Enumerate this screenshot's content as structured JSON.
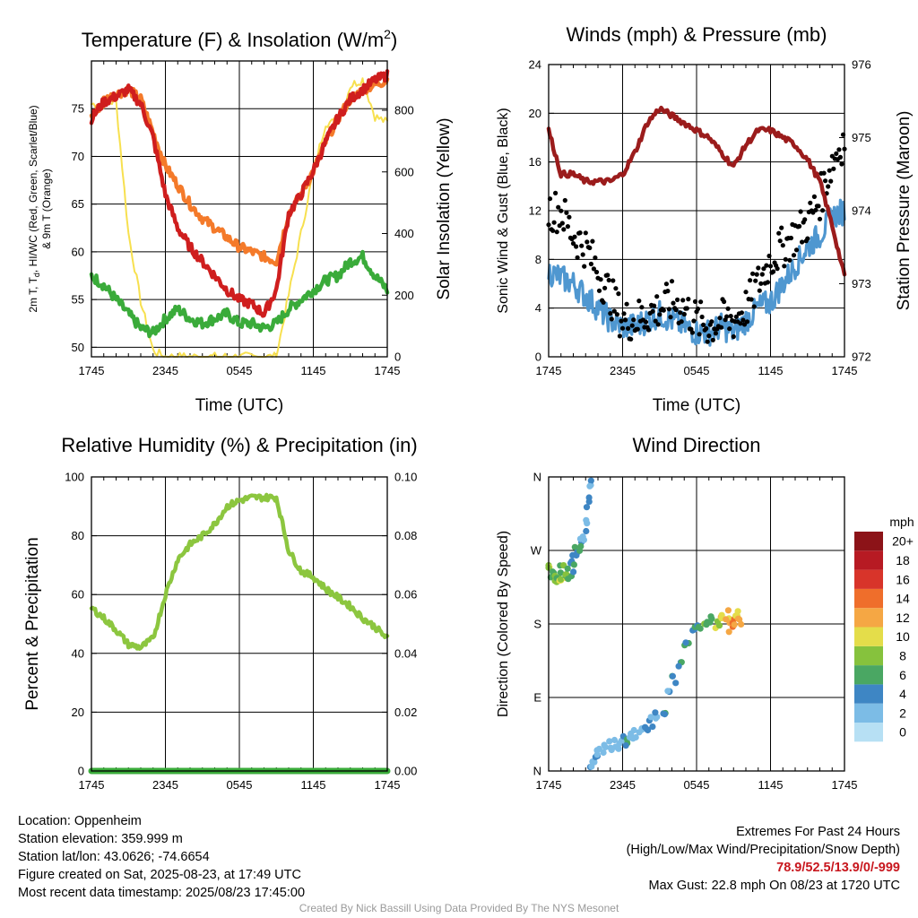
{
  "colors": {
    "temp": "#cf1e1e",
    "dew": "#3aab3a",
    "heat_index": "#f47a2a",
    "insolation": "#f7e04f",
    "wind": "#4f97d0",
    "gust": "#000000",
    "pressure": "#9b1c1c",
    "rh": "#8cc63f",
    "precip": "#3aab3a",
    "speed_scale": [
      "#b7e0f4",
      "#7cbce6",
      "#3e86c4",
      "#4aa763",
      "#86c23d",
      "#e4dd4a",
      "#f5a744",
      "#ef6e2b",
      "#d8342a",
      "#b71a23",
      "#8c1318"
    ]
  },
  "time_ticks": [
    "1745",
    "2345",
    "0545",
    "1145",
    "1745"
  ],
  "chart_data": [
    {
      "type": "line",
      "title": "Temperature (F) & Insolation (W/m",
      "title_sup": "2",
      "title_close": ")",
      "xlabel": "Time (UTC)",
      "ylabel_left_1": "2m T, T",
      "ylabel_left_sub": "d",
      "ylabel_left_2": ", HI/WC (Red, Green, Scarlet/Blue)",
      "ylabel_left_line2": "& 9m T (Orange)",
      "ylabel_right": "Solar Insolation (Yellow)",
      "ylim": [
        49,
        80
      ],
      "yticks": [
        "50",
        "55",
        "60",
        "65",
        "70",
        "75"
      ],
      "y2lim": [
        0,
        960
      ],
      "y2ticks": [
        "0",
        "200",
        "400",
        "600",
        "800"
      ],
      "x_hours": [
        0,
        1,
        2,
        3,
        4,
        5,
        6,
        7,
        8,
        9,
        10,
        11,
        12,
        13,
        14,
        15,
        16,
        17,
        18,
        19,
        20,
        21,
        22,
        23,
        24
      ],
      "series": [
        {
          "key": "temp",
          "values": [
            74,
            75.7,
            76.3,
            77,
            75.5,
            72,
            66,
            62.5,
            60.5,
            59,
            57.5,
            56,
            55,
            54.5,
            53.5,
            56,
            64,
            66,
            68.5,
            71.5,
            74,
            76,
            77,
            78,
            78.5
          ]
        },
        {
          "key": "heat_index",
          "values": [
            74,
            75.9,
            76.5,
            77,
            76,
            72.5,
            69,
            67,
            65,
            63.5,
            62.5,
            61.5,
            60.5,
            60,
            59.5,
            59,
            64,
            66,
            68.5,
            71.5,
            74,
            76,
            77,
            77.5,
            78
          ]
        },
        {
          "key": "dew",
          "values": [
            57.5,
            56.5,
            55,
            53.5,
            52,
            51.5,
            53,
            54,
            53,
            52.5,
            53,
            53.5,
            52.5,
            52.5,
            52,
            52.5,
            54,
            55,
            56,
            57,
            57.5,
            59,
            59.5,
            57.5,
            56
          ]
        },
        {
          "key": "insolation",
          "values": [
            820,
            820,
            830,
            400,
            180,
            20,
            0,
            0,
            0,
            0,
            0,
            0,
            0,
            0,
            0,
            0,
            200,
            400,
            600,
            760,
            760,
            880,
            900,
            780,
            760
          ]
        }
      ]
    },
    {
      "type": "line",
      "title": "Winds (mph) & Pressure (mb)",
      "xlabel": "Time (UTC)",
      "ylabel_left": "Sonic Wind & Gust (Blue, Black)",
      "ylabel_right": "Station Pressure (Maroon)",
      "ylim": [
        0,
        24
      ],
      "yticks": [
        "0",
        "4",
        "8",
        "12",
        "16",
        "20",
        "24"
      ],
      "y2lim": [
        972,
        976
      ],
      "y2ticks": [
        "972",
        "973",
        "974",
        "975",
        "976"
      ],
      "x_hours": [
        0,
        1,
        2,
        3,
        4,
        5,
        6,
        7,
        8,
        9,
        10,
        11,
        12,
        13,
        14,
        15,
        16,
        17,
        18,
        19,
        20,
        21,
        22,
        23,
        24
      ],
      "series": [
        {
          "key": "wind",
          "values": [
            7,
            6.5,
            6,
            5,
            4,
            3,
            2.5,
            2.5,
            3,
            3.5,
            3,
            2.5,
            2,
            2,
            2.5,
            2,
            3,
            4,
            4.5,
            6,
            7.5,
            9,
            10,
            11.5,
            12
          ]
        },
        {
          "key": "gust",
          "values": [
            12,
            12,
            10,
            9,
            7,
            5,
            3,
            3,
            3.5,
            4,
            4.5,
            4,
            3,
            2.5,
            3,
            3,
            4,
            6,
            8,
            9,
            10,
            11,
            13,
            16,
            18
          ]
        },
        {
          "key": "pressure",
          "values": [
            975.1,
            974.5,
            974.5,
            974.4,
            974.4,
            974.4,
            974.5,
            974.8,
            975.2,
            975.4,
            975.3,
            975.2,
            975.1,
            975,
            974.8,
            974.6,
            974.9,
            975.1,
            975.1,
            975,
            974.9,
            974.7,
            974.4,
            973.8,
            973.1
          ]
        }
      ]
    },
    {
      "type": "line",
      "title": "Relative Humidity (%) & Precipitation (in)",
      "xlabel": "",
      "ylabel_left": "Percent & Precipitation",
      "ylim": [
        0,
        100
      ],
      "yticks": [
        "0",
        "20",
        "40",
        "60",
        "80",
        "100"
      ],
      "y2lim": [
        0,
        0.1
      ],
      "y2ticks": [
        "0.00",
        "0.02",
        "0.04",
        "0.06",
        "0.08",
        "0.10"
      ],
      "x_hours": [
        0,
        1,
        2,
        3,
        4,
        5,
        6,
        7,
        8,
        9,
        10,
        11,
        12,
        13,
        14,
        15,
        16,
        17,
        18,
        19,
        20,
        21,
        22,
        23,
        24
      ],
      "series": [
        {
          "key": "rh",
          "values": [
            55.5,
            52,
            48,
            43,
            42,
            45,
            60,
            72,
            77,
            80,
            84,
            90,
            92,
            93,
            93,
            93,
            75,
            68,
            66,
            62,
            59,
            56,
            52,
            49,
            45
          ]
        },
        {
          "key": "precip",
          "values": [
            0,
            0,
            0,
            0,
            0,
            0,
            0,
            0,
            0,
            0,
            0,
            0,
            0,
            0,
            0,
            0,
            0,
            0,
            0,
            0,
            0,
            0,
            0,
            0,
            0
          ]
        }
      ]
    },
    {
      "type": "scatter",
      "title": "Wind Direction",
      "xlabel": "",
      "ylabel_left": "Direction (Colored By Speed)",
      "ylim": [
        0,
        360
      ],
      "yticks": [
        "N",
        "E",
        "S",
        "W",
        "N"
      ],
      "legend_title": "mph",
      "legend_labels": [
        "0",
        "2",
        "4",
        "6",
        "8",
        "10",
        "12",
        "14",
        "16",
        "18",
        "20+"
      ],
      "points": [
        [
          0.1,
          245,
          7
        ],
        [
          0.3,
          240,
          6
        ],
        [
          0.5,
          235,
          7
        ],
        [
          0.7,
          238,
          6
        ],
        [
          0.9,
          232,
          8
        ],
        [
          1.1,
          245,
          6
        ],
        [
          1.3,
          236,
          7
        ],
        [
          1.5,
          240,
          5
        ],
        [
          1.7,
          242,
          5
        ],
        [
          1.9,
          250,
          4
        ],
        [
          2.1,
          258,
          4
        ],
        [
          2.3,
          270,
          3
        ],
        [
          2.5,
          275,
          3
        ],
        [
          2.7,
          285,
          2
        ],
        [
          3.0,
          300,
          1
        ],
        [
          3.2,
          330,
          1
        ],
        [
          3.4,
          350,
          1
        ],
        [
          3.5,
          5,
          1
        ],
        [
          3.8,
          15,
          2
        ],
        [
          4.1,
          20,
          1
        ],
        [
          4.5,
          25,
          2
        ],
        [
          5.0,
          30,
          1
        ],
        [
          5.5,
          32,
          2
        ],
        [
          5.9,
          38,
          2
        ],
        [
          6.3,
          35,
          3
        ],
        [
          6.7,
          40,
          2
        ],
        [
          7.0,
          45,
          2
        ],
        [
          7.5,
          50,
          2
        ],
        [
          7.9,
          55,
          3
        ],
        [
          8.3,
          60,
          2
        ],
        [
          8.8,
          65,
          2
        ],
        [
          9.3,
          70,
          3
        ],
        [
          9.8,
          95,
          2
        ],
        [
          10.2,
          110,
          3
        ],
        [
          10.7,
          130,
          3
        ],
        [
          11.2,
          160,
          3
        ],
        [
          11.7,
          170,
          4
        ],
        [
          12.2,
          175,
          4
        ],
        [
          12.7,
          180,
          5
        ],
        [
          13.2,
          185,
          6
        ],
        [
          13.7,
          178,
          8
        ],
        [
          14.1,
          185,
          9
        ],
        [
          14.5,
          190,
          10
        ],
        [
          14.8,
          175,
          11
        ],
        [
          15.0,
          180,
          12
        ],
        [
          15.2,
          190,
          9
        ],
        [
          15.5,
          185,
          11
        ]
      ]
    }
  ],
  "footer": {
    "location": "Location: Oppenheim",
    "elevation": "Station elevation: 359.999 m",
    "latlon": "Station lat/lon: 43.0626; -74.6654",
    "created": "Figure created on Sat, 2025-08-23, at 17:49 UTC",
    "recent": "Most recent data timestamp: 2025/08/23 17:45:00",
    "extremes_title": "Extremes For Past 24 Hours",
    "extremes_legend": "(High/Low/Max Wind/Precipitation/Snow Depth)",
    "extremes_values": "78.9/52.5/13.9/0/-999",
    "max_gust": "Max Gust: 22.8 mph On 08/23 at 1720 UTC",
    "credit": "Created By Nick Bassill Using Data Provided By The NYS Mesonet"
  }
}
